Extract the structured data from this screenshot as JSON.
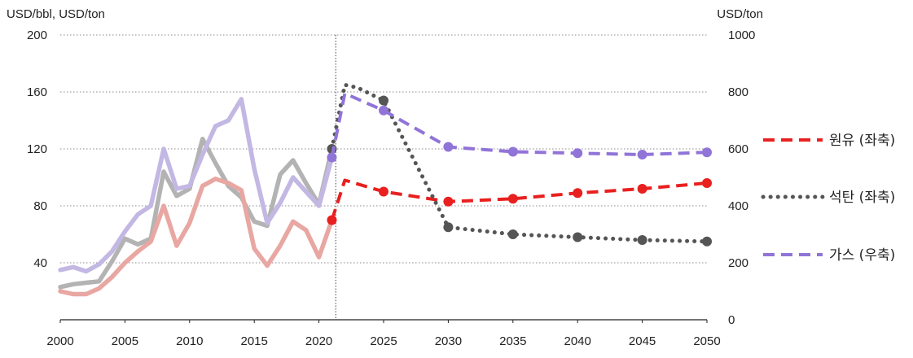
{
  "chart_data": {
    "type": "line",
    "left_axis_unit": "USD/bbl, USD/ton",
    "right_axis_unit": "USD/ton",
    "x_ticks": [
      2000,
      2005,
      2010,
      2015,
      2020,
      2025,
      2030,
      2035,
      2040,
      2045,
      2050
    ],
    "y_left_ticks": [
      40,
      80,
      120,
      160,
      200
    ],
    "y_right_ticks": [
      0,
      200,
      400,
      600,
      800,
      1000
    ],
    "xlim": [
      2000,
      2050
    ],
    "ylim_left": [
      0,
      200
    ],
    "ylim_right": [
      0,
      1000
    ],
    "grid": "horizontal dotted",
    "forecast_divider_x": 2021.3,
    "legend_position": "right",
    "series": [
      {
        "name": "원유 (좌축)",
        "axis": "left",
        "color": "#e8201f",
        "history_color": "#e8a7a2",
        "history": {
          "x": [
            2000,
            2001,
            2002,
            2003,
            2004,
            2005,
            2006,
            2007,
            2008,
            2009,
            2010,
            2011,
            2012,
            2013,
            2014,
            2015,
            2016,
            2017,
            2018,
            2019,
            2020,
            2021
          ],
          "y": [
            20,
            18,
            18,
            22,
            30,
            40,
            48,
            55,
            80,
            52,
            68,
            94,
            99,
            96,
            91,
            50,
            38,
            52,
            69,
            63,
            44,
            70
          ]
        },
        "forecast": {
          "x": [
            2021,
            2022,
            2025,
            2030,
            2035,
            2040,
            2045,
            2050
          ],
          "y": [
            70,
            98,
            90,
            83,
            85,
            89,
            92,
            96
          ]
        },
        "markers_x": [
          2021,
          2025,
          2030,
          2035,
          2040,
          2045,
          2050
        ],
        "style": "dashed"
      },
      {
        "name": "석탄 (좌축)",
        "axis": "left",
        "color": "#555555",
        "history_color": "#b3b3b3",
        "history": {
          "x": [
            2000,
            2001,
            2002,
            2003,
            2004,
            2005,
            2006,
            2007,
            2008,
            2009,
            2010,
            2011,
            2012,
            2013,
            2014,
            2015,
            2016,
            2017,
            2018,
            2019,
            2020,
            2021
          ],
          "y": [
            23,
            25,
            26,
            27,
            41,
            57,
            53,
            57,
            104,
            87,
            92,
            127,
            110,
            94,
            86,
            69,
            66,
            102,
            112,
            96,
            81,
            120
          ]
        },
        "forecast": {
          "x": [
            2021,
            2022,
            2023,
            2025,
            2030,
            2035,
            2040,
            2045,
            2050
          ],
          "y": [
            120,
            165,
            163,
            154,
            65,
            60,
            58,
            56,
            55
          ]
        },
        "markers_x": [
          2021,
          2025,
          2030,
          2035,
          2040,
          2045,
          2050
        ],
        "style": "dotted"
      },
      {
        "name": "가스 (우축)",
        "axis": "right",
        "color": "#9174d8",
        "history_color": "#c3b8e3",
        "history": {
          "x": [
            2000,
            2001,
            2002,
            2003,
            2004,
            2005,
            2006,
            2007,
            2008,
            2009,
            2010,
            2011,
            2012,
            2013,
            2014,
            2015,
            2016,
            2017,
            2018,
            2019,
            2020,
            2021
          ],
          "y": [
            175,
            185,
            170,
            195,
            240,
            310,
            370,
            400,
            600,
            460,
            470,
            580,
            680,
            700,
            775,
            530,
            340,
            410,
            500,
            450,
            400,
            570
          ]
        },
        "forecast": {
          "x": [
            2021,
            2022,
            2025,
            2030,
            2035,
            2040,
            2045,
            2050
          ],
          "y": [
            570,
            795,
            735,
            607,
            590,
            585,
            580,
            588
          ]
        },
        "markers_x": [
          2021,
          2025,
          2030,
          2035,
          2040,
          2045,
          2050
        ],
        "style": "dashed"
      }
    ]
  }
}
